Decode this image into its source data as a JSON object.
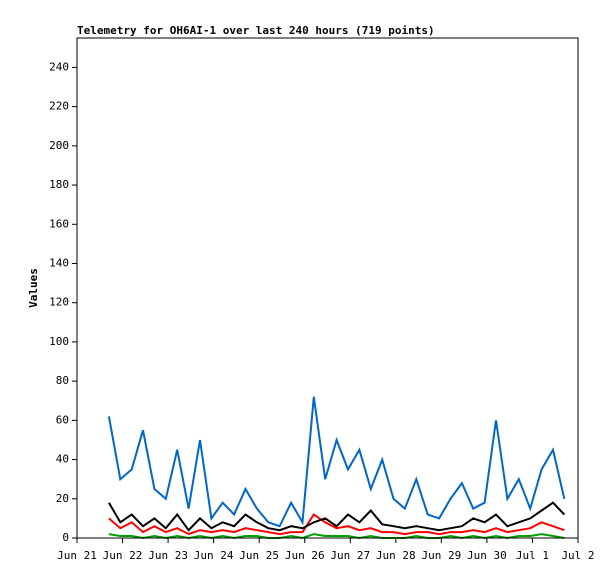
{
  "chart_data": {
    "type": "line",
    "title": "Telemetry for OH6AI-1 over last 240 hours (719 points)",
    "y_label": "Values",
    "x": [
      0.7,
      0.95,
      1.2,
      1.45,
      1.7,
      1.95,
      2.2,
      2.45,
      2.7,
      2.95,
      3.2,
      3.45,
      3.7,
      3.95,
      4.2,
      4.45,
      4.7,
      4.95,
      5.2,
      5.45,
      5.7,
      5.95,
      6.2,
      6.45,
      6.7,
      6.95,
      7.2,
      7.45,
      7.7,
      7.95,
      8.2,
      8.45,
      8.7,
      8.95,
      9.2,
      9.45,
      9.7,
      9.95,
      10.2,
      10.45,
      10.7
    ],
    "xlim": [
      0,
      11
    ],
    "xticks": [
      {
        "value": 0,
        "label": "Jun 21"
      },
      {
        "value": 1,
        "label": "Jun 22"
      },
      {
        "value": 2,
        "label": "Jun 23"
      },
      {
        "value": 3,
        "label": "Jun 24"
      },
      {
        "value": 4,
        "label": "Jun 25"
      },
      {
        "value": 5,
        "label": "Jun 26"
      },
      {
        "value": 6,
        "label": "Jun 27"
      },
      {
        "value": 7,
        "label": "Jun 28"
      },
      {
        "value": 8,
        "label": "Jun 29"
      },
      {
        "value": 9,
        "label": "Jun 30"
      },
      {
        "value": 10,
        "label": "Jul 1"
      },
      {
        "value": 11,
        "label": "Jul 2"
      }
    ],
    "ylim": [
      0,
      255
    ],
    "yticks": [
      0,
      20,
      40,
      60,
      80,
      100,
      120,
      140,
      160,
      180,
      200,
      220,
      240
    ],
    "series": [
      {
        "color": "#0066cc",
        "values": [
          62,
          30,
          35,
          55,
          25,
          20,
          45,
          15,
          50,
          10,
          18,
          12,
          25,
          15,
          8,
          6,
          18,
          8,
          72,
          30,
          50,
          35,
          45,
          25,
          40,
          20,
          15,
          30,
          12,
          10,
          20,
          28,
          15,
          18,
          60,
          20,
          30,
          15,
          35,
          45,
          20
        ]
      },
      {
        "color": "#ff0000",
        "values": [
          10,
          5,
          8,
          3,
          6,
          3,
          5,
          2,
          4,
          3,
          4,
          3,
          5,
          4,
          3,
          2,
          3,
          3,
          12,
          8,
          5,
          6,
          4,
          5,
          3,
          3,
          2,
          3,
          3,
          2,
          3,
          3,
          4,
          3,
          5,
          3,
          4,
          5,
          8,
          6,
          4
        ]
      },
      {
        "color": "#000000",
        "values": [
          18,
          8,
          12,
          6,
          10,
          5,
          12,
          4,
          10,
          5,
          8,
          6,
          12,
          8,
          5,
          4,
          6,
          5,
          8,
          10,
          6,
          12,
          8,
          14,
          7,
          6,
          5,
          6,
          5,
          4,
          5,
          6,
          10,
          8,
          12,
          6,
          8,
          10,
          14,
          18,
          12
        ]
      },
      {
        "color": "#00a000",
        "values": [
          2,
          1,
          1,
          0,
          1,
          0,
          1,
          0,
          1,
          0,
          1,
          0,
          1,
          1,
          0,
          0,
          1,
          0,
          2,
          1,
          1,
          1,
          0,
          1,
          0,
          0,
          0,
          1,
          0,
          0,
          1,
          0,
          1,
          0,
          1,
          0,
          1,
          1,
          2,
          1,
          0
        ]
      }
    ]
  }
}
